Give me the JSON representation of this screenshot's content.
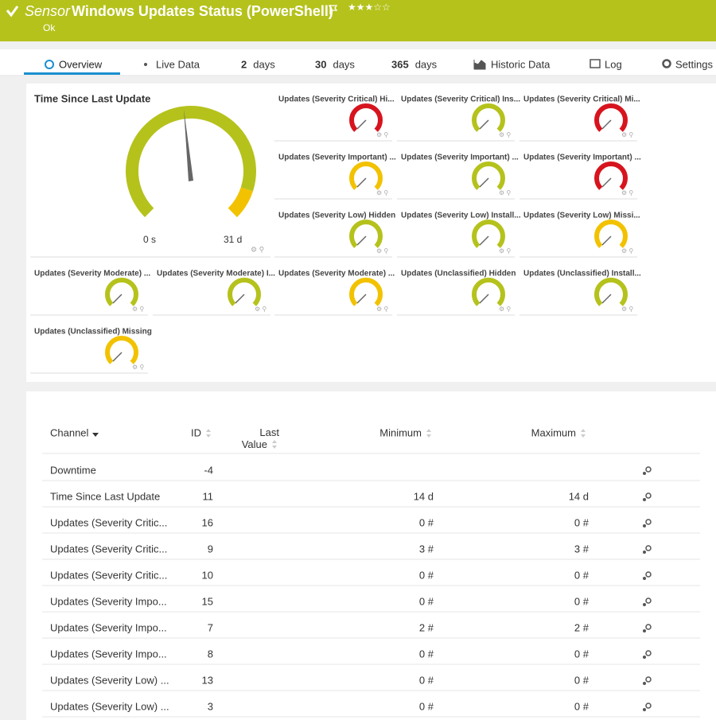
{
  "header": {
    "kind": "Sensor",
    "title": "Windows Updates Status (PowerShell)",
    "status": "Ok"
  },
  "tabs": [
    {
      "label": "Overview"
    },
    {
      "label": "Live Data"
    },
    {
      "number": "2",
      "label": "days"
    },
    {
      "number": "30",
      "label": "days"
    },
    {
      "number": "365",
      "label": "days"
    },
    {
      "label": "Historic Data"
    },
    {
      "label": "Log"
    },
    {
      "label": "Settings"
    }
  ],
  "overview": {
    "main_gauge": {
      "title": "Time Since Last Update",
      "min_label": "0 s",
      "max_label": "31 d"
    },
    "gauges": [
      {
        "title": "Updates (Severity Critical) Hi...",
        "color": "#d7141e"
      },
      {
        "title": "Updates (Severity Critical) Ins...",
        "color": "#b5c21c"
      },
      {
        "title": "Updates (Severity Critical) Mi...",
        "color": "#d7141e"
      },
      {
        "title": "Updates (Severity Important) ...",
        "color": "#f2c200"
      },
      {
        "title": "Updates (Severity Important) ...",
        "color": "#b5c21c"
      },
      {
        "title": "Updates (Severity Important) ...",
        "color": "#d7141e"
      },
      {
        "title": "Updates (Severity Low) Hidden",
        "color": "#b5c21c"
      },
      {
        "title": "Updates (Severity Low) Install...",
        "color": "#b5c21c"
      },
      {
        "title": "Updates (Severity Low) Missi...",
        "color": "#f2c200"
      },
      {
        "title": "Updates (Severity Moderate) ...",
        "color": "#b5c21c"
      },
      {
        "title": "Updates (Severity Moderate) I...",
        "color": "#b5c21c"
      },
      {
        "title": "Updates (Severity Moderate) ...",
        "color": "#f2c200"
      },
      {
        "title": "Updates (Unclassified) Hidden",
        "color": "#b5c21c"
      },
      {
        "title": "Updates (Unclassified) Install...",
        "color": "#b5c21c"
      },
      {
        "title": "Updates (Unclassified) Missing",
        "color": "#f2c200"
      }
    ]
  },
  "table": {
    "columns": [
      "Channel",
      "ID",
      "Last Value",
      "Minimum",
      "Maximum"
    ],
    "rows": [
      {
        "channel": "Downtime",
        "id": -4
      },
      {
        "channel": "Time Since Last Update",
        "id": 11,
        "minimum": "14 d",
        "maximum": "14 d"
      },
      {
        "channel": "Updates (Severity Critic...",
        "id": 16,
        "minimum": "0 #",
        "maximum": "0 #"
      },
      {
        "channel": "Updates (Severity Critic...",
        "id": 9,
        "minimum": "3 #",
        "maximum": "3 #"
      },
      {
        "channel": "Updates (Severity Critic...",
        "id": 10,
        "minimum": "0 #",
        "maximum": "0 #"
      },
      {
        "channel": "Updates (Severity Impo...",
        "id": 15,
        "minimum": "0 #",
        "maximum": "0 #"
      },
      {
        "channel": "Updates (Severity Impo...",
        "id": 7,
        "minimum": "2 #",
        "maximum": "2 #"
      },
      {
        "channel": "Updates (Severity Impo...",
        "id": 8,
        "minimum": "0 #",
        "maximum": "0 #"
      },
      {
        "channel": "Updates (Severity Low) ...",
        "id": 13,
        "minimum": "0 #",
        "maximum": "0 #"
      },
      {
        "channel": "Updates (Severity Low) ...",
        "id": 3,
        "minimum": "0 #",
        "maximum": "0 #"
      }
    ]
  }
}
